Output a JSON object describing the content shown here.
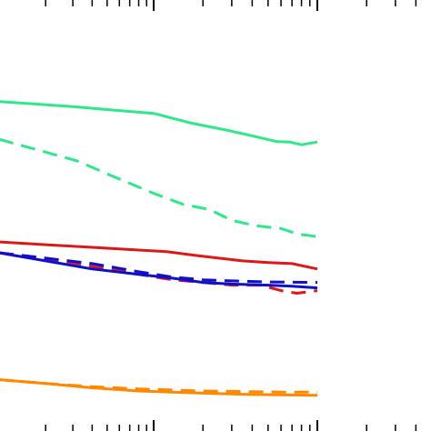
{
  "chart_data": {
    "type": "line",
    "x_scale": "log",
    "xlim": [
      1,
      100
    ],
    "ylim": [
      0,
      1
    ],
    "grid": false,
    "legend": "none",
    "series": [
      {
        "color": "#2ee88a",
        "dash": "solid",
        "points": [
          [
            1,
            0.61
          ],
          [
            1.8,
            0.605
          ],
          [
            3.2,
            0.6
          ],
          [
            5.6,
            0.594
          ],
          [
            10,
            0.588
          ],
          [
            17,
            0.57
          ],
          [
            30,
            0.555
          ],
          [
            42,
            0.545
          ],
          [
            56,
            0.536
          ],
          [
            68,
            0.535
          ],
          [
            80,
            0.53
          ],
          [
            100,
            0.535
          ]
        ]
      },
      {
        "color": "#2ee88a",
        "dash": "dashed",
        "points": [
          [
            1,
            0.54
          ],
          [
            1.8,
            0.52
          ],
          [
            3.2,
            0.5
          ],
          [
            5.6,
            0.47
          ],
          [
            10,
            0.44
          ],
          [
            15,
            0.42
          ],
          [
            22,
            0.41
          ],
          [
            30,
            0.39
          ],
          [
            42,
            0.38
          ],
          [
            60,
            0.375
          ],
          [
            75,
            0.365
          ],
          [
            100,
            0.36
          ]
        ]
      },
      {
        "color": "#dd1818",
        "dash": "solid",
        "points": [
          [
            1,
            0.35
          ],
          [
            2,
            0.345
          ],
          [
            4,
            0.34
          ],
          [
            8,
            0.335
          ],
          [
            12,
            0.332
          ],
          [
            18,
            0.325
          ],
          [
            25,
            0.32
          ],
          [
            35,
            0.315
          ],
          [
            50,
            0.312
          ],
          [
            70,
            0.31
          ],
          [
            100,
            0.3
          ]
        ]
      },
      {
        "color": "#dd1818",
        "dash": "dashed",
        "points": [
          [
            1,
            0.33
          ],
          [
            2,
            0.32
          ],
          [
            4,
            0.305
          ],
          [
            8,
            0.29
          ],
          [
            13,
            0.28
          ],
          [
            20,
            0.275
          ],
          [
            30,
            0.27
          ],
          [
            45,
            0.27
          ],
          [
            60,
            0.26
          ],
          [
            75,
            0.255
          ],
          [
            100,
            0.26
          ]
        ]
      },
      {
        "color": "#1010cc",
        "dash": "solid",
        "points": [
          [
            1,
            0.33
          ],
          [
            2,
            0.315
          ],
          [
            4,
            0.3
          ],
          [
            8,
            0.29
          ],
          [
            13,
            0.283
          ],
          [
            20,
            0.275
          ],
          [
            30,
            0.272
          ],
          [
            50,
            0.27
          ],
          [
            70,
            0.268
          ],
          [
            100,
            0.265
          ]
        ]
      },
      {
        "color": "#1010cc",
        "dash": "dashed",
        "points": [
          [
            1,
            0.33
          ],
          [
            2,
            0.32
          ],
          [
            4,
            0.31
          ],
          [
            8,
            0.295
          ],
          [
            13,
            0.285
          ],
          [
            20,
            0.28
          ],
          [
            30,
            0.278
          ],
          [
            50,
            0.276
          ],
          [
            100,
            0.275
          ]
        ]
      },
      {
        "color": "#ff8800",
        "dash": "solid",
        "points": [
          [
            1,
            0.095
          ],
          [
            2,
            0.088
          ],
          [
            4,
            0.08
          ],
          [
            8,
            0.074
          ],
          [
            13,
            0.072
          ],
          [
            20,
            0.07
          ],
          [
            35,
            0.068
          ],
          [
            60,
            0.067
          ],
          [
            100,
            0.066
          ]
        ]
      },
      {
        "color": "#ff8800",
        "dash": "dashed",
        "points": [
          [
            1,
            0.095
          ],
          [
            2,
            0.088
          ],
          [
            4,
            0.082
          ],
          [
            8,
            0.078
          ],
          [
            13,
            0.076
          ],
          [
            20,
            0.074
          ],
          [
            35,
            0.073
          ],
          [
            60,
            0.072
          ],
          [
            100,
            0.072
          ]
        ]
      }
    ]
  }
}
